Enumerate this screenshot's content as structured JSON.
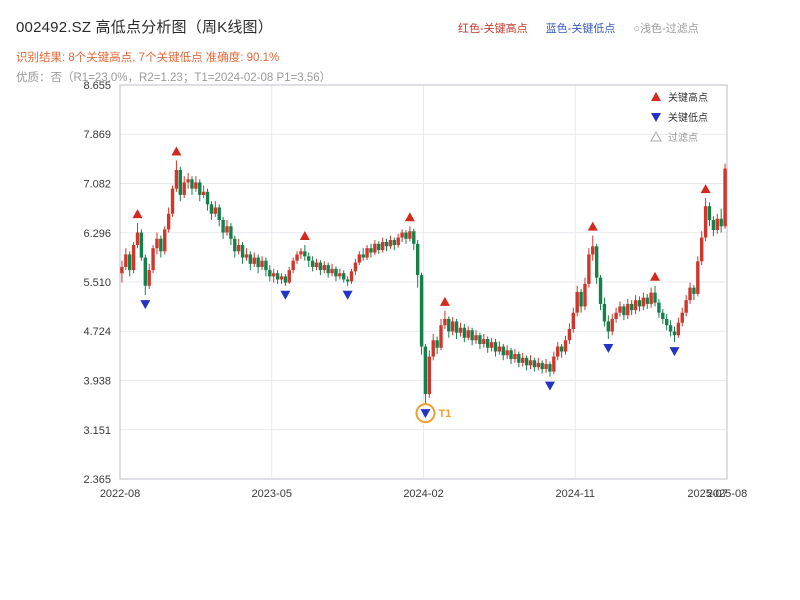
{
  "header": {
    "title": "002492.SZ 高低点分析图（周K线图）",
    "legend_top": [
      {
        "label": "红色-关键高点",
        "color": "#c23a2e"
      },
      {
        "label": "蓝色-关键低点",
        "color": "#3a5bbf"
      },
      {
        "label": "○浅色-过滤点",
        "color": "#999999"
      }
    ],
    "result_line": "识别结果: 8个关键高点, 7个关键低点  准确度: 90.1%",
    "result_color": "#e06a3a",
    "quality_line": "优质：否（R1=23.0%，R2=1.23；T1=2024-02-08 P1=3.56）",
    "quality_color": "#9a9a9a"
  },
  "chart_data": {
    "type": "candlestick",
    "title": "002492.SZ 高低点分析图（周K线图）",
    "frequency": "weekly",
    "xlabel": "",
    "ylabel": "",
    "grid": true,
    "y_range": [
      2.365,
      8.655
    ],
    "y_ticks": [
      "8.655",
      "7.869",
      "7.082",
      "6.296",
      "5.510",
      "4.724",
      "3.938",
      "3.151",
      "2.365"
    ],
    "x_ticks": [
      {
        "week": 0,
        "label": "2022-08",
        "grid": true
      },
      {
        "week": 39,
        "label": "2023-05",
        "grid": true
      },
      {
        "week": 78,
        "label": "2024-02",
        "grid": true
      },
      {
        "week": 117,
        "label": "2024-11",
        "grid": true
      },
      {
        "week": 151,
        "label": "2025-07",
        "grid": false
      },
      {
        "week": 156,
        "label": "2025-08",
        "grid": true
      }
    ],
    "up_color": "#cf362c",
    "down_color": "#15814a",
    "key_high_color": "#d42a1e",
    "key_low_color": "#2333c4",
    "filter_color": "#aaaaaa",
    "t1_color": "#f0a030",
    "plot_legend": [
      {
        "label": "关键高点",
        "marker": "up",
        "color": "#d42a1e",
        "text_color": "#333333"
      },
      {
        "label": "关键低点",
        "marker": "down",
        "color": "#2333c4",
        "text_color": "#333333"
      },
      {
        "label": "过滤点",
        "marker": "up-hollow",
        "color": "#aaaaaa",
        "text_color": "#999999"
      }
    ],
    "key_highs": [
      {
        "week": 4,
        "price": 6.45
      },
      {
        "week": 14,
        "price": 7.45
      },
      {
        "week": 47,
        "price": 6.1
      },
      {
        "week": 74,
        "price": 6.4
      },
      {
        "week": 83,
        "price": 5.05
      },
      {
        "week": 121,
        "price": 6.25
      },
      {
        "week": 137,
        "price": 5.45
      },
      {
        "week": 150,
        "price": 6.85
      }
    ],
    "key_lows": [
      {
        "week": 6,
        "price": 5.3
      },
      {
        "week": 42,
        "price": 5.45
      },
      {
        "week": 58,
        "price": 5.45
      },
      {
        "week": 78,
        "price": 3.56
      },
      {
        "week": 110,
        "price": 4.0
      },
      {
        "week": 125,
        "price": 4.6
      },
      {
        "week": 142,
        "price": 4.55
      }
    ],
    "t1": {
      "week": 78,
      "price": 3.56,
      "label": "T1",
      "date": "2024-02-08"
    },
    "candles_ohlc": [
      [
        5.65,
        5.85,
        5.5,
        5.75
      ],
      [
        5.75,
        6.05,
        5.7,
        5.95
      ],
      [
        5.95,
        6.0,
        5.6,
        5.7
      ],
      [
        5.7,
        6.15,
        5.65,
        6.1
      ],
      [
        6.1,
        6.45,
        6.05,
        6.3
      ],
      [
        6.3,
        6.35,
        5.85,
        5.9
      ],
      [
        5.9,
        5.95,
        5.3,
        5.45
      ],
      [
        5.45,
        5.8,
        5.4,
        5.7
      ],
      [
        5.7,
        6.1,
        5.65,
        6.05
      ],
      [
        6.05,
        6.3,
        5.95,
        6.2
      ],
      [
        6.2,
        6.25,
        5.9,
        6.0
      ],
      [
        6.0,
        6.4,
        5.95,
        6.35
      ],
      [
        6.35,
        6.7,
        6.3,
        6.6
      ],
      [
        6.6,
        7.05,
        6.55,
        7.0
      ],
      [
        7.0,
        7.45,
        6.95,
        7.3
      ],
      [
        7.3,
        7.35,
        6.8,
        6.9
      ],
      [
        6.9,
        7.2,
        6.85,
        7.1
      ],
      [
        7.1,
        7.25,
        7.0,
        7.15
      ],
      [
        7.15,
        7.2,
        6.9,
        7.0
      ],
      [
        7.0,
        7.2,
        6.95,
        7.1
      ],
      [
        7.1,
        7.15,
        6.8,
        6.9
      ],
      [
        6.9,
        7.05,
        6.85,
        6.95
      ],
      [
        6.95,
        7.0,
        6.65,
        6.75
      ],
      [
        6.75,
        6.8,
        6.5,
        6.6
      ],
      [
        6.6,
        6.8,
        6.55,
        6.7
      ],
      [
        6.7,
        6.75,
        6.4,
        6.5
      ],
      [
        6.5,
        6.55,
        6.2,
        6.3
      ],
      [
        6.3,
        6.5,
        6.25,
        6.4
      ],
      [
        6.4,
        6.45,
        6.1,
        6.2
      ],
      [
        6.2,
        6.25,
        5.9,
        6.0
      ],
      [
        6.0,
        6.2,
        5.95,
        6.1
      ],
      [
        6.1,
        6.15,
        5.8,
        5.9
      ],
      [
        5.9,
        6.05,
        5.85,
        5.95
      ],
      [
        5.95,
        6.0,
        5.7,
        5.8
      ],
      [
        5.8,
        5.98,
        5.75,
        5.9
      ],
      [
        5.9,
        5.95,
        5.65,
        5.75
      ],
      [
        5.75,
        5.92,
        5.7,
        5.85
      ],
      [
        5.85,
        5.9,
        5.6,
        5.7
      ],
      [
        5.7,
        5.78,
        5.52,
        5.6
      ],
      [
        5.6,
        5.72,
        5.5,
        5.65
      ],
      [
        5.65,
        5.7,
        5.48,
        5.55
      ],
      [
        5.55,
        5.65,
        5.48,
        5.6
      ],
      [
        5.6,
        5.64,
        5.45,
        5.5
      ],
      [
        5.5,
        5.75,
        5.48,
        5.7
      ],
      [
        5.7,
        5.9,
        5.65,
        5.85
      ],
      [
        5.85,
        6.0,
        5.8,
        5.95
      ],
      [
        5.95,
        6.05,
        5.88,
        6.0
      ],
      [
        6.0,
        6.1,
        5.85,
        5.92
      ],
      [
        5.92,
        5.98,
        5.75,
        5.85
      ],
      [
        5.85,
        5.92,
        5.68,
        5.75
      ],
      [
        5.75,
        5.88,
        5.7,
        5.82
      ],
      [
        5.82,
        5.86,
        5.62,
        5.7
      ],
      [
        5.7,
        5.84,
        5.65,
        5.78
      ],
      [
        5.78,
        5.82,
        5.58,
        5.65
      ],
      [
        5.65,
        5.8,
        5.6,
        5.72
      ],
      [
        5.72,
        5.76,
        5.52,
        5.6
      ],
      [
        5.6,
        5.72,
        5.55,
        5.65
      ],
      [
        5.65,
        5.7,
        5.5,
        5.55
      ],
      [
        5.55,
        5.6,
        5.45,
        5.52
      ],
      [
        5.52,
        5.72,
        5.48,
        5.68
      ],
      [
        5.68,
        5.88,
        5.62,
        5.82
      ],
      [
        5.82,
        6.0,
        5.78,
        5.95
      ],
      [
        5.95,
        6.05,
        5.85,
        5.9
      ],
      [
        5.9,
        6.1,
        5.86,
        6.05
      ],
      [
        6.05,
        6.12,
        5.9,
        5.98
      ],
      [
        5.98,
        6.18,
        5.94,
        6.12
      ],
      [
        6.12,
        6.16,
        5.96,
        6.02
      ],
      [
        6.02,
        6.22,
        5.98,
        6.15
      ],
      [
        6.15,
        6.2,
        6.0,
        6.08
      ],
      [
        6.08,
        6.25,
        6.04,
        6.18
      ],
      [
        6.18,
        6.22,
        6.02,
        6.1
      ],
      [
        6.1,
        6.28,
        6.06,
        6.22
      ],
      [
        6.22,
        6.35,
        6.15,
        6.3
      ],
      [
        6.3,
        6.34,
        6.12,
        6.2
      ],
      [
        6.2,
        6.4,
        6.16,
        6.32
      ],
      [
        6.32,
        6.36,
        6.02,
        6.12
      ],
      [
        6.12,
        6.18,
        5.42,
        5.62
      ],
      [
        5.62,
        5.66,
        4.35,
        4.48
      ],
      [
        4.48,
        4.52,
        3.56,
        3.72
      ],
      [
        3.72,
        4.42,
        3.66,
        4.32
      ],
      [
        4.32,
        4.68,
        4.26,
        4.58
      ],
      [
        4.58,
        4.64,
        4.36,
        4.46
      ],
      [
        4.46,
        4.92,
        4.42,
        4.82
      ],
      [
        4.82,
        5.05,
        4.76,
        4.92
      ],
      [
        4.92,
        4.96,
        4.62,
        4.72
      ],
      [
        4.72,
        4.95,
        4.66,
        4.88
      ],
      [
        4.88,
        4.92,
        4.6,
        4.7
      ],
      [
        4.7,
        4.86,
        4.64,
        4.78
      ],
      [
        4.78,
        4.84,
        4.55,
        4.62
      ],
      [
        4.62,
        4.8,
        4.58,
        4.74
      ],
      [
        4.74,
        4.78,
        4.5,
        4.58
      ],
      [
        4.58,
        4.74,
        4.52,
        4.66
      ],
      [
        4.66,
        4.7,
        4.44,
        4.52
      ],
      [
        4.52,
        4.68,
        4.46,
        4.6
      ],
      [
        4.6,
        4.64,
        4.38,
        4.46
      ],
      [
        4.46,
        4.62,
        4.4,
        4.55
      ],
      [
        4.55,
        4.6,
        4.32,
        4.4
      ],
      [
        4.4,
        4.56,
        4.35,
        4.48
      ],
      [
        4.48,
        4.52,
        4.26,
        4.34
      ],
      [
        4.34,
        4.5,
        4.28,
        4.42
      ],
      [
        4.42,
        4.46,
        4.2,
        4.28
      ],
      [
        4.28,
        4.44,
        4.22,
        4.36
      ],
      [
        4.36,
        4.4,
        4.15,
        4.22
      ],
      [
        4.22,
        4.38,
        4.16,
        4.3
      ],
      [
        4.3,
        4.34,
        4.1,
        4.18
      ],
      [
        4.18,
        4.34,
        4.12,
        4.26
      ],
      [
        4.26,
        4.3,
        4.08,
        4.15
      ],
      [
        4.15,
        4.3,
        4.1,
        4.22
      ],
      [
        4.22,
        4.26,
        4.05,
        4.12
      ],
      [
        4.12,
        4.28,
        4.06,
        4.2
      ],
      [
        4.2,
        4.24,
        4.0,
        4.08
      ],
      [
        4.08,
        4.4,
        4.04,
        4.32
      ],
      [
        4.32,
        4.55,
        4.26,
        4.48
      ],
      [
        4.48,
        4.52,
        4.3,
        4.4
      ],
      [
        4.4,
        4.65,
        4.35,
        4.58
      ],
      [
        4.58,
        4.85,
        4.52,
        4.76
      ],
      [
        4.76,
        5.1,
        4.7,
        5.02
      ],
      [
        5.02,
        5.45,
        4.96,
        5.35
      ],
      [
        5.35,
        5.4,
        5.02,
        5.12
      ],
      [
        5.12,
        5.58,
        5.06,
        5.48
      ],
      [
        5.48,
        6.05,
        5.42,
        5.95
      ],
      [
        5.95,
        6.25,
        5.85,
        6.08
      ],
      [
        6.08,
        6.12,
        5.48,
        5.58
      ],
      [
        5.58,
        5.62,
        5.06,
        5.16
      ],
      [
        5.16,
        5.26,
        4.8,
        4.88
      ],
      [
        4.88,
        4.98,
        4.6,
        4.72
      ],
      [
        4.72,
        5.0,
        4.66,
        4.92
      ],
      [
        4.92,
        5.1,
        4.86,
        5.02
      ],
      [
        5.02,
        5.2,
        4.96,
        5.12
      ],
      [
        5.12,
        5.16,
        4.9,
        4.98
      ],
      [
        4.98,
        5.24,
        4.92,
        5.16
      ],
      [
        5.16,
        5.22,
        4.98,
        5.06
      ],
      [
        5.06,
        5.3,
        5.0,
        5.22
      ],
      [
        5.22,
        5.28,
        5.04,
        5.12
      ],
      [
        5.12,
        5.34,
        5.06,
        5.26
      ],
      [
        5.26,
        5.32,
        5.08,
        5.16
      ],
      [
        5.16,
        5.42,
        5.1,
        5.34
      ],
      [
        5.34,
        5.45,
        5.12,
        5.18
      ],
      [
        5.18,
        5.24,
        4.94,
        5.02
      ],
      [
        5.02,
        5.08,
        4.84,
        4.92
      ],
      [
        4.92,
        5.0,
        4.74,
        4.82
      ],
      [
        4.82,
        4.9,
        4.64,
        4.72
      ],
      [
        4.72,
        4.8,
        4.55,
        4.66
      ],
      [
        4.66,
        4.94,
        4.62,
        4.86
      ],
      [
        4.86,
        5.1,
        4.8,
        5.02
      ],
      [
        5.02,
        5.3,
        4.96,
        5.22
      ],
      [
        5.22,
        5.5,
        5.16,
        5.42
      ],
      [
        5.42,
        5.46,
        5.22,
        5.32
      ],
      [
        5.32,
        5.92,
        5.28,
        5.84
      ],
      [
        5.84,
        6.32,
        5.78,
        6.22
      ],
      [
        6.22,
        6.85,
        6.16,
        6.72
      ],
      [
        6.72,
        6.78,
        6.4,
        6.5
      ],
      [
        6.5,
        6.56,
        6.24,
        6.34
      ],
      [
        6.34,
        6.6,
        6.28,
        6.52
      ],
      [
        6.52,
        6.68,
        6.3,
        6.4
      ],
      [
        6.4,
        7.4,
        6.36,
        7.32
      ]
    ]
  }
}
